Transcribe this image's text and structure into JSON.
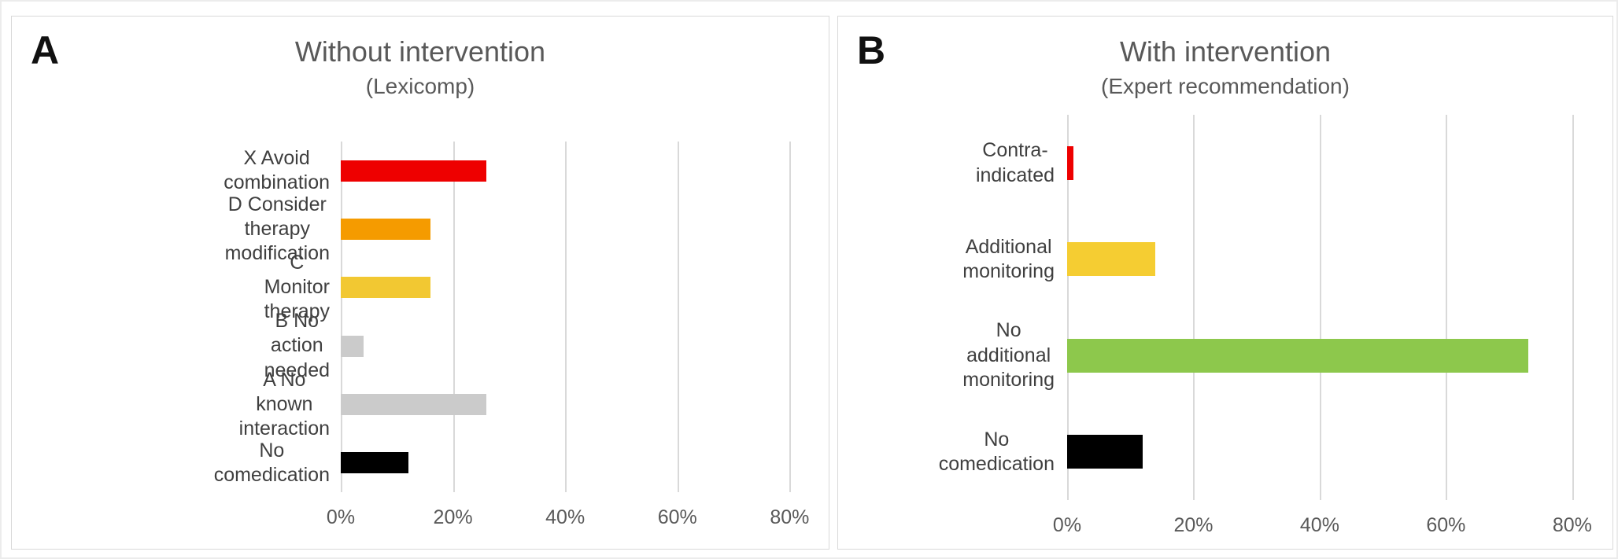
{
  "figure": {
    "background": "#ffffff",
    "panel_border_color": "#d9d9d9",
    "gridline_color": "#d9d9d9",
    "title_color": "#595959",
    "category_label_color": "#3f3f3f",
    "tick_label_color": "#595959"
  },
  "chart_data": [
    {
      "type": "bar",
      "orientation": "horizontal",
      "panel_letter": "A",
      "title": "Without intervention",
      "subtitle": "(Lexicomp)",
      "categories": [
        "X Avoid combination",
        "D Consider therapy modification",
        "C Monitor therapy",
        "B No action needed",
        "A No known interaction",
        "No comedication"
      ],
      "values": [
        26,
        16,
        16,
        4,
        26,
        12
      ],
      "unit": "%",
      "bar_colors": [
        "#ee0000",
        "#f59b00",
        "#f2c832",
        "#cbcbcb",
        "#cbcbcb",
        "#000000"
      ],
      "xticks": [
        0,
        20,
        40,
        60,
        80
      ],
      "xtick_labels": [
        "0%",
        "20%",
        "40%",
        "60%",
        "80%"
      ],
      "xlim": [
        0,
        85
      ],
      "grid": true,
      "legend": "none"
    },
    {
      "type": "bar",
      "orientation": "horizontal",
      "panel_letter": "B",
      "title": "With intervention",
      "subtitle": "(Expert recommendation)",
      "categories": [
        "Contra-indicated",
        "Additional monitoring",
        "No additional monitoring",
        "No comedication"
      ],
      "values": [
        1,
        14,
        73,
        12
      ],
      "unit": "%",
      "bar_colors": [
        "#ee0000",
        "#f5cd32",
        "#8dc84c",
        "#000000"
      ],
      "xticks": [
        0,
        20,
        40,
        60,
        80
      ],
      "xtick_labels": [
        "0%",
        "20%",
        "40%",
        "60%",
        "80%"
      ],
      "xlim": [
        0,
        85
      ],
      "grid": true,
      "legend": "none"
    }
  ]
}
